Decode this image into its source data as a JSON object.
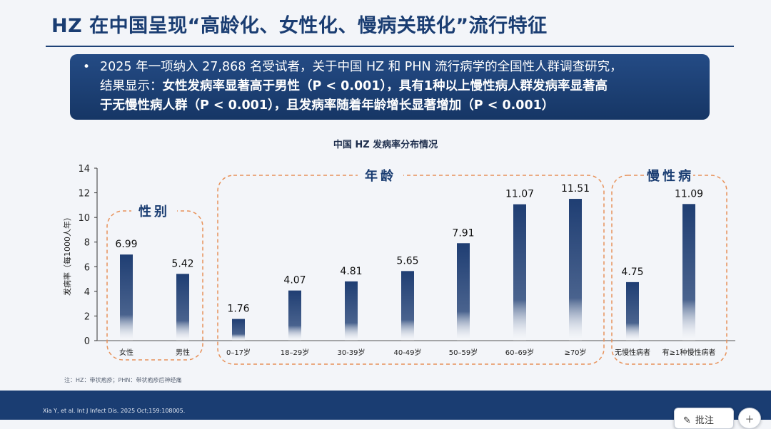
{
  "page": {
    "title": "HZ 在中国呈现“高龄化、女性化、慢病关联化”流行特征",
    "callout_line1": "2025 年一项纳入 27,868 名受试者，关于中国 HZ 和 PHN 流行病学的全国性人群调查研究，",
    "callout_line2_plain": "结果显示：",
    "callout_line2_bold": "女性发病率显著高于男性（P < 0.001），具有1种以上慢性病人群发病率显著高",
    "callout_line3_bold": "于无慢性病人群（P < 0.001），且发病率随着年龄增长显著增加（P < 0.001）",
    "footnote": "注：HZ：带状疱疹；PHN：带状疱疹后神经痛",
    "reference": "Xia Y, et al. Int J Infect Dis. 2025 Oct;159:108005.",
    "annotate_label": "批注",
    "annotate_icon": "pencil-icon",
    "add_icon": "plus-icon"
  },
  "chart_data": {
    "type": "bar",
    "title": "中国 HZ 发病率分布情况",
    "ylabel": "发病率（每1000人年）",
    "xlabel": "",
    "ylim": [
      0,
      14
    ],
    "yticks": [
      "0",
      "2",
      "4",
      "6",
      "8",
      "10",
      "12",
      "14"
    ],
    "bar_color": "#1f3e73",
    "bar_fade_color": "#ffffff",
    "group_border_color": "#e8925a",
    "grid": false,
    "groups": [
      {
        "name": "性别",
        "categories": [
          "女性",
          "男性"
        ],
        "values": [
          6.99,
          5.42
        ],
        "labels": [
          "6.99",
          "5.42"
        ]
      },
      {
        "name": "年龄",
        "categories": [
          "0–17岁",
          "18–29岁",
          "30-39岁",
          "40-49岁",
          "50–59岁",
          "60–69岁",
          "≥70岁"
        ],
        "values": [
          1.76,
          4.07,
          4.81,
          5.65,
          7.91,
          11.07,
          11.51
        ],
        "labels": [
          "1.76",
          "4.07",
          "4.81",
          "5.65",
          "7.91",
          "11.07",
          "11.51"
        ]
      },
      {
        "name": "慢性病",
        "categories": [
          "无慢性病者",
          "有≥1种慢性病者"
        ],
        "values": [
          4.75,
          11.09
        ],
        "labels": [
          "4.75",
          "11.09"
        ]
      }
    ]
  }
}
